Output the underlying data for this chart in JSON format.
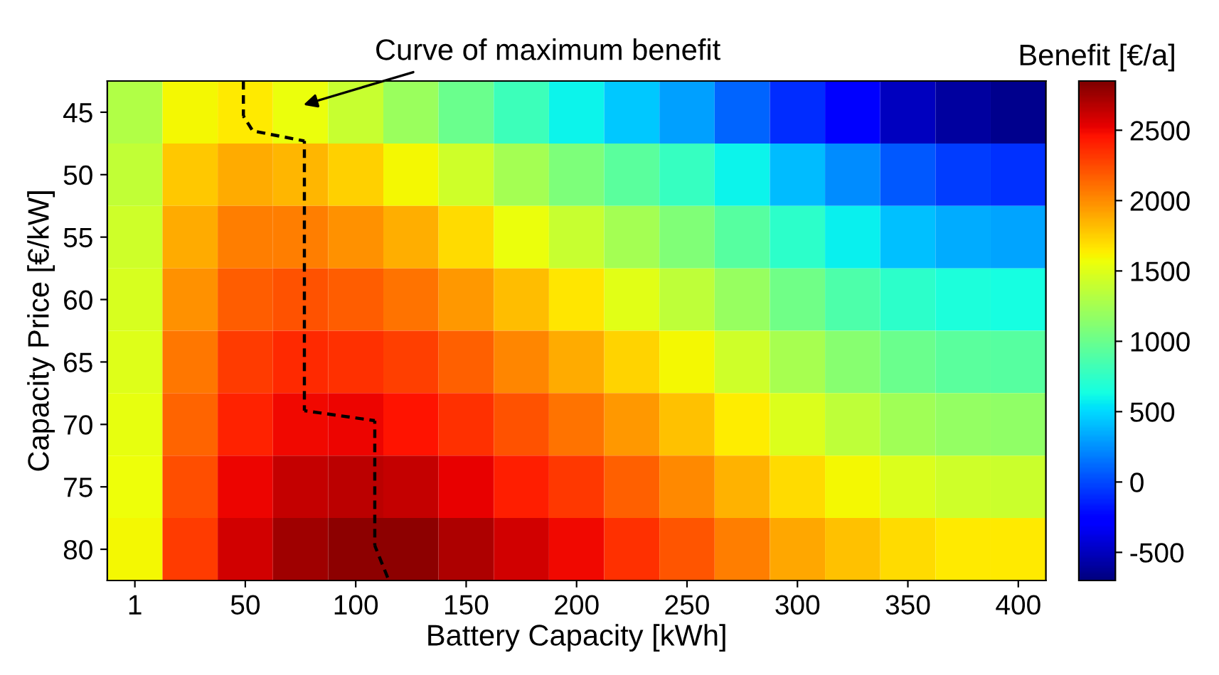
{
  "chart_data": {
    "type": "heatmap",
    "xlabel": "Battery Capacity [kWh]",
    "ylabel": "Capacity Price [€/kW]",
    "clabel": "Benefit [€/a]",
    "categories": [
      "1",
      null,
      "50",
      null,
      "100",
      null,
      "150",
      null,
      "200",
      null,
      "250",
      null,
      "300",
      null,
      "350",
      null,
      "400"
    ],
    "y_categories": [
      "45",
      "50",
      "55",
      "60",
      "65",
      "70",
      "75",
      "80"
    ],
    "clim": [
      -700,
      2850
    ],
    "cticks": [
      -500,
      0,
      500,
      1000,
      1500,
      2000,
      2500
    ],
    "cells": [
      [
        1300,
        1600,
        1650,
        1550,
        1400,
        1200,
        1000,
        800,
        600,
        450,
        300,
        100,
        -100,
        -300,
        -500,
        -600,
        -650
      ],
      [
        1380,
        1780,
        1890,
        1850,
        1750,
        1600,
        1430,
        1250,
        1080,
        930,
        780,
        590,
        400,
        230,
        50,
        -40,
        -80
      ],
      [
        1430,
        1890,
        2050,
        2050,
        1990,
        1870,
        1710,
        1560,
        1400,
        1250,
        1100,
        920,
        740,
        580,
        420,
        350,
        320
      ],
      [
        1470,
        1990,
        2180,
        2220,
        2180,
        2100,
        1950,
        1810,
        1660,
        1510,
        1360,
        1190,
        1020,
        880,
        730,
        660,
        640
      ],
      [
        1500,
        2080,
        2300,
        2370,
        2350,
        2290,
        2160,
        2020,
        1890,
        1740,
        1590,
        1430,
        1260,
        1130,
        1000,
        930,
        910
      ],
      [
        1540,
        2150,
        2400,
        2500,
        2510,
        2460,
        2340,
        2220,
        2100,
        1950,
        1800,
        1640,
        1480,
        1360,
        1240,
        1180,
        1170
      ],
      [
        1570,
        2230,
        2510,
        2630,
        2660,
        2640,
        2530,
        2420,
        2310,
        2160,
        2010,
        1860,
        1700,
        1590,
        1480,
        1430,
        1420
      ],
      [
        1600,
        2300,
        2600,
        2750,
        2800,
        2800,
        2700,
        2600,
        2500,
        2350,
        2200,
        2050,
        1900,
        1800,
        1700,
        1650,
        1650
      ]
    ],
    "annotations": [
      "Curve of maximum benefit"
    ]
  }
}
